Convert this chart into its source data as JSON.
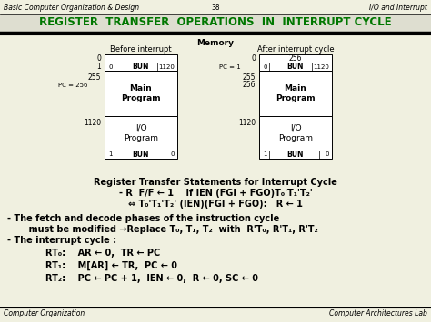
{
  "bg_color": "#f0f0e0",
  "title_text": "REGISTER  TRANSFER  OPERATIONS  IN  INTERRUPT CYCLE",
  "title_color": "#007700",
  "top_left": "Basic Computer Organization & Design",
  "top_center": "38",
  "top_right": "I/O and Interrupt",
  "bottom_left": "Computer Organization",
  "bottom_right": "Computer Architectures Lab",
  "memory_label": "Memory",
  "before_label": "Before interrupt",
  "after_label": "After interrupt cycle"
}
